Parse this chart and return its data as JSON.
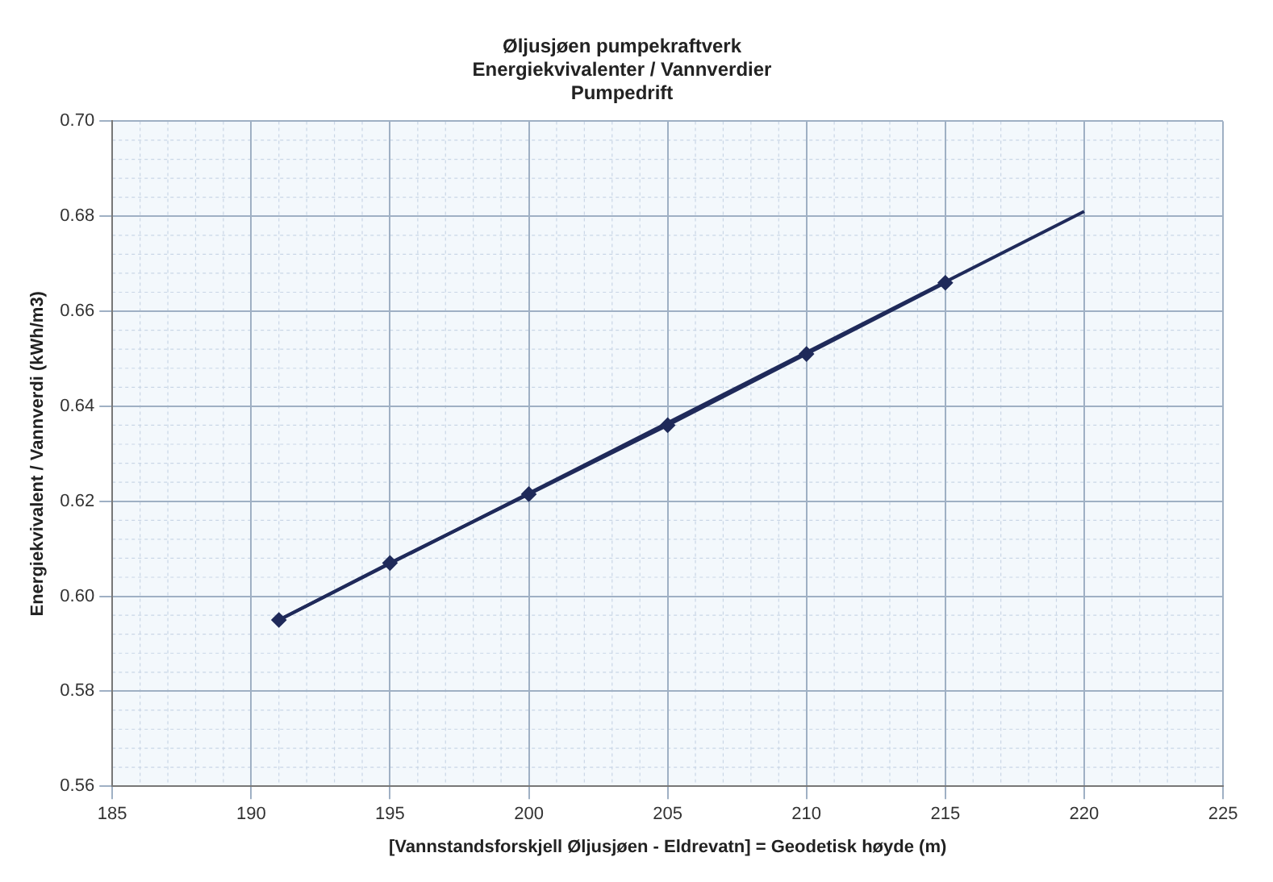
{
  "chart_data": {
    "type": "line",
    "title": "Øljusjøen pumpekraftverk",
    "subtitle": "Energiekvivalenter / Vannverdier\nPumpedrift",
    "xlabel": "[Vannstandsforskjell Øljusjøen - Eldrevatn] = Geodetisk høyde (m)",
    "ylabel": "Energiekvivalent / Vannverdi (kWh/m3)",
    "series": [
      {
        "color": "#1f2a5a",
        "marker": "diamond",
        "x": [
          191,
          195,
          200,
          205,
          210,
          215
        ],
        "values": [
          0.595,
          0.607,
          0.6215,
          0.636,
          0.651,
          0.666
        ]
      },
      {
        "type": "line",
        "color": "#1f2a5a",
        "marker": "none",
        "x": [
          191,
          220
        ],
        "values": [
          0.595,
          0.681
        ]
      }
    ],
    "xlim": [
      185,
      225
    ],
    "xticks": [
      185,
      190,
      195,
      200,
      205,
      210,
      215,
      220,
      225
    ],
    "ylim": [
      0.56,
      0.7
    ],
    "yticks": [
      0.56,
      0.58,
      {
        "value": 0.6,
        "label": "0.60"
      },
      0.62,
      0.64,
      0.66,
      0.68,
      {
        "value": 0.7,
        "label": "0.70"
      }
    ],
    "grid": true,
    "legend": false
  }
}
